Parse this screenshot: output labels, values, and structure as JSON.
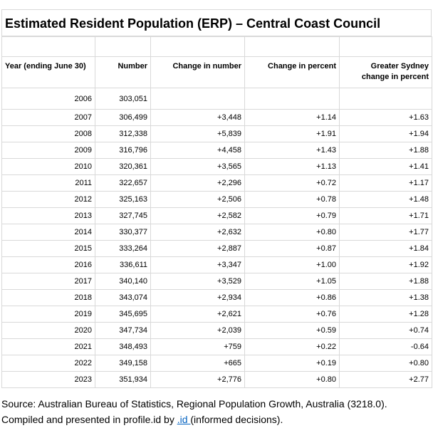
{
  "title": "Estimated Resident Population (ERP) – Central Coast Council",
  "columns": {
    "year": "Year (ending June 30)",
    "number": "Number",
    "change_number": "Change in number",
    "change_percent": "Change in percent",
    "sydney_change": "Greater Sydney change in percent"
  },
  "rows": [
    {
      "year": "2006",
      "number": "303,051",
      "change_number": "",
      "change_percent": "",
      "sydney_change": ""
    },
    {
      "year": "2007",
      "number": "306,499",
      "change_number": "+3,448",
      "change_percent": "+1.14",
      "sydney_change": "+1.63"
    },
    {
      "year": "2008",
      "number": "312,338",
      "change_number": "+5,839",
      "change_percent": "+1.91",
      "sydney_change": "+1.94"
    },
    {
      "year": "2009",
      "number": "316,796",
      "change_number": "+4,458",
      "change_percent": "+1.43",
      "sydney_change": "+1.88"
    },
    {
      "year": "2010",
      "number": "320,361",
      "change_number": "+3,565",
      "change_percent": "+1.13",
      "sydney_change": "+1.41"
    },
    {
      "year": "2011",
      "number": "322,657",
      "change_number": "+2,296",
      "change_percent": "+0.72",
      "sydney_change": "+1.17"
    },
    {
      "year": "2012",
      "number": "325,163",
      "change_number": "+2,506",
      "change_percent": "+0.78",
      "sydney_change": "+1.48"
    },
    {
      "year": "2013",
      "number": "327,745",
      "change_number": "+2,582",
      "change_percent": "+0.79",
      "sydney_change": "+1.71"
    },
    {
      "year": "2014",
      "number": "330,377",
      "change_number": "+2,632",
      "change_percent": "+0.80",
      "sydney_change": "+1.77"
    },
    {
      "year": "2015",
      "number": "333,264",
      "change_number": "+2,887",
      "change_percent": "+0.87",
      "sydney_change": "+1.84"
    },
    {
      "year": "2016",
      "number": "336,611",
      "change_number": "+3,347",
      "change_percent": "+1.00",
      "sydney_change": "+1.92"
    },
    {
      "year": "2017",
      "number": "340,140",
      "change_number": "+3,529",
      "change_percent": "+1.05",
      "sydney_change": "+1.88"
    },
    {
      "year": "2018",
      "number": "343,074",
      "change_number": "+2,934",
      "change_percent": "+0.86",
      "sydney_change": "+1.38"
    },
    {
      "year": "2019",
      "number": "345,695",
      "change_number": "+2,621",
      "change_percent": "+0.76",
      "sydney_change": "+1.28"
    },
    {
      "year": "2020",
      "number": "347,734",
      "change_number": "+2,039",
      "change_percent": "+0.59",
      "sydney_change": "+0.74"
    },
    {
      "year": "2021",
      "number": "348,493",
      "change_number": "+759",
      "change_percent": "+0.22",
      "sydney_change": "-0.64"
    },
    {
      "year": "2022",
      "number": "349,158",
      "change_number": "+665",
      "change_percent": "+0.19",
      "sydney_change": "+0.80"
    },
    {
      "year": "2023",
      "number": "351,934",
      "change_number": "+2,776",
      "change_percent": "+0.80",
      "sydney_change": "+2.77"
    }
  ],
  "source": {
    "line1": "Source: Australian Bureau of Statistics, Regional Population Growth, Australia (3218.0).",
    "line2_prefix": "Compiled and presented in profile.id by ",
    "link_text": ".id ",
    "line2_suffix": "(informed decisions)."
  },
  "colors": {
    "grid": "#d9d9d9",
    "link": "#0563c1"
  }
}
